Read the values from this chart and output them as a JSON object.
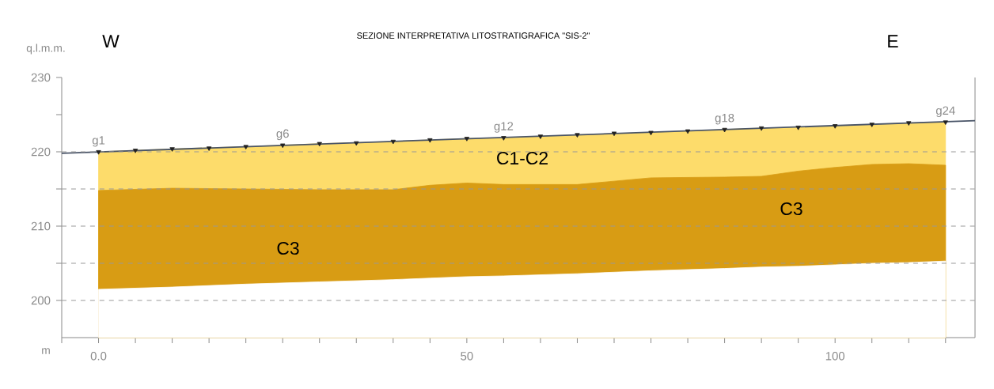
{
  "chart_data": {
    "type": "area",
    "title": "SEZIONE INTERPRETATIVA LITOSTRATIGRAFICA \"SIS-2\"",
    "xlabel": "m",
    "ylabel": "q.l.m.m.",
    "annotations": [
      "W",
      "E",
      "C1-C2",
      "C3",
      "C3"
    ],
    "xlim": [
      -5,
      119
    ],
    "ylim": [
      195,
      230
    ],
    "xticks": [
      {
        "value": -5,
        "label": null
      },
      {
        "value": 0,
        "label": "0.0"
      },
      {
        "value": 5,
        "label": null
      },
      {
        "value": 10,
        "label": null
      },
      {
        "value": 15,
        "label": null
      },
      {
        "value": 20,
        "label": null
      },
      {
        "value": 25,
        "label": null
      },
      {
        "value": 30,
        "label": null
      },
      {
        "value": 35,
        "label": null
      },
      {
        "value": 40,
        "label": null
      },
      {
        "value": 45,
        "label": null
      },
      50,
      {
        "value": 55,
        "label": null
      },
      {
        "value": 60,
        "label": null
      },
      {
        "value": 65,
        "label": null
      },
      {
        "value": 70,
        "label": null
      },
      {
        "value": 75,
        "label": null
      },
      {
        "value": 80,
        "label": null
      },
      {
        "value": 85,
        "label": null
      },
      {
        "value": 90,
        "label": null
      },
      {
        "value": 95,
        "label": null
      },
      100,
      {
        "value": 105,
        "label": null
      },
      {
        "value": 110,
        "label": null
      },
      {
        "value": 115,
        "label": null
      }
    ],
    "yticks": [
      200,
      {
        "value": 205,
        "label": null
      },
      210,
      {
        "value": 215,
        "label": null
      },
      220,
      {
        "value": 225,
        "label": null
      },
      230
    ],
    "ref_lines": [
      {
        "axis": "y",
        "value": 200,
        "color": "#999999",
        "line_style": "dashed"
      },
      {
        "axis": "y",
        "value": 205,
        "color": "#999999",
        "line_style": "dashed"
      },
      {
        "axis": "y",
        "value": 210,
        "color": "#999999",
        "line_style": "dashed"
      },
      {
        "axis": "y",
        "value": 215,
        "color": "#999999",
        "line_style": "dashed"
      },
      {
        "axis": "y",
        "value": 220,
        "color": "#999999",
        "line_style": "dashed"
      }
    ],
    "series": [
      {
        "color": "#fddc6b",
        "x": [
          0,
          10,
          20,
          30,
          40,
          45,
          50,
          55,
          65,
          75,
          85,
          90,
          95,
          100,
          105,
          110,
          115
        ],
        "values": [
          220.0,
          220.4,
          220.7,
          221.1,
          221.4,
          221.6,
          221.8,
          221.9,
          222.3,
          222.6,
          223.0,
          223.2,
          223.3,
          223.5,
          223.7,
          223.9,
          224.0
        ]
      },
      {
        "color": "#d89c14",
        "x": [
          0,
          10,
          20,
          30,
          40,
          45,
          50,
          55,
          65,
          75,
          85,
          90,
          95,
          100,
          105,
          110,
          115
        ],
        "values": [
          214.8,
          215.1,
          215.0,
          214.9,
          214.9,
          215.5,
          215.8,
          215.6,
          215.6,
          216.5,
          216.6,
          216.7,
          217.4,
          217.9,
          218.3,
          218.4,
          218.2
        ]
      },
      {
        "color": "#ffffff",
        "x": [
          0,
          10,
          20,
          30,
          40,
          45,
          50,
          55,
          65,
          75,
          85,
          90,
          95,
          100,
          105,
          110,
          115
        ],
        "values": [
          201.5,
          201.8,
          202.2,
          202.5,
          202.8,
          203.0,
          203.2,
          203.3,
          203.6,
          204.0,
          204.3,
          204.5,
          204.6,
          204.8,
          205.0,
          205.1,
          205.3
        ]
      },
      {
        "type": "line",
        "color": "#4a5568",
        "marker": "none",
        "line_style": "solid",
        "x": [
          -5,
          119
        ],
        "values": [
          219.8,
          224.2
        ]
      },
      {
        "type": "scatter",
        "color": "#222222",
        "marker": "triangle",
        "x": [
          0,
          5,
          10,
          15,
          20,
          25,
          30,
          35,
          40,
          45,
          50,
          55,
          60,
          65,
          70,
          75,
          80,
          85,
          90,
          95,
          100,
          105,
          110,
          115
        ],
        "values": [
          220.0,
          220.2,
          220.4,
          220.5,
          220.7,
          220.9,
          221.1,
          221.2,
          221.4,
          221.6,
          221.8,
          221.9,
          222.1,
          222.3,
          222.5,
          222.6,
          222.8,
          223.0,
          223.2,
          223.3,
          223.5,
          223.7,
          223.9,
          224.0
        ],
        "value_labels": [
          "g1",
          null,
          null,
          null,
          null,
          "g6",
          null,
          null,
          null,
          null,
          null,
          "g12",
          null,
          null,
          null,
          null,
          null,
          "g18",
          null,
          null,
          null,
          null,
          null,
          "g24"
        ]
      }
    ]
  }
}
